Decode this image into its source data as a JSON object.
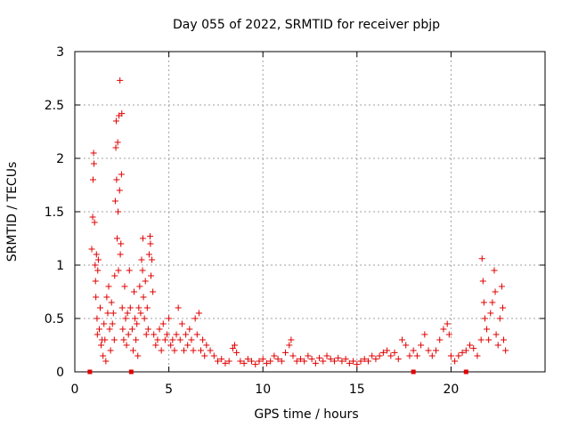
{
  "chart_data": {
    "type": "scatter",
    "title": "Day 055 of 2022, SRMTID for receiver pbjp",
    "xlabel": "GPS time / hours",
    "ylabel": "SRMTID / TECUs",
    "xlim": [
      0,
      25
    ],
    "ylim": [
      0,
      3
    ],
    "xticks": [
      0,
      5,
      10,
      15,
      20
    ],
    "yticks": [
      0,
      0.5,
      1,
      1.5,
      2,
      2.5,
      3
    ],
    "xtick_labels": [
      "0",
      "5",
      "10",
      "15",
      "20"
    ],
    "ytick_labels": [
      "0",
      "0.5",
      "1",
      "1.5",
      "2",
      "2.5",
      "3"
    ],
    "grid": true,
    "marker": "plus",
    "series_color": "#e00000",
    "zero_markers_x": [
      0.8,
      3.0,
      18.0,
      20.8
    ],
    "series": [
      {
        "name": "SRMTID",
        "points": [
          [
            0.9,
            1.15
          ],
          [
            0.95,
            1.45
          ],
          [
            0.97,
            1.8
          ],
          [
            1.0,
            2.05
          ],
          [
            1.02,
            1.95
          ],
          [
            1.05,
            1.4
          ],
          [
            1.08,
            1.0
          ],
          [
            1.1,
            0.85
          ],
          [
            1.12,
            0.7
          ],
          [
            1.15,
            1.1
          ],
          [
            1.18,
            0.5
          ],
          [
            1.2,
            0.35
          ],
          [
            1.22,
            0.95
          ],
          [
            1.25,
            1.05
          ],
          [
            1.3,
            0.4
          ],
          [
            1.35,
            0.6
          ],
          [
            1.4,
            0.25
          ],
          [
            1.45,
            0.3
          ],
          [
            1.5,
            0.15
          ],
          [
            1.55,
            0.45
          ],
          [
            1.6,
            0.3
          ],
          [
            1.65,
            0.1
          ],
          [
            1.7,
            0.7
          ],
          [
            1.75,
            0.55
          ],
          [
            1.8,
            0.8
          ],
          [
            1.85,
            0.4
          ],
          [
            1.9,
            0.2
          ],
          [
            1.95,
            0.65
          ],
          [
            2.0,
            0.45
          ],
          [
            2.05,
            0.55
          ],
          [
            2.1,
            0.3
          ],
          [
            2.12,
            0.9
          ],
          [
            2.15,
            1.6
          ],
          [
            2.18,
            2.1
          ],
          [
            2.2,
            2.35
          ],
          [
            2.22,
            1.8
          ],
          [
            2.25,
            1.25
          ],
          [
            2.28,
            2.15
          ],
          [
            2.3,
            1.5
          ],
          [
            2.32,
            0.95
          ],
          [
            2.35,
            2.4
          ],
          [
            2.38,
            1.7
          ],
          [
            2.4,
            2.73
          ],
          [
            2.42,
            1.1
          ],
          [
            2.45,
            1.2
          ],
          [
            2.48,
            1.85
          ],
          [
            2.5,
            2.42
          ],
          [
            2.52,
            0.6
          ],
          [
            2.55,
            0.4
          ],
          [
            2.6,
            0.3
          ],
          [
            2.65,
            0.8
          ],
          [
            2.7,
            0.5
          ],
          [
            2.75,
            0.25
          ],
          [
            2.8,
            0.55
          ],
          [
            2.85,
            0.35
          ],
          [
            2.9,
            0.95
          ],
          [
            2.95,
            0.6
          ],
          [
            3.05,
            0.4
          ],
          [
            3.1,
            0.2
          ],
          [
            3.15,
            0.75
          ],
          [
            3.2,
            0.5
          ],
          [
            3.25,
            0.3
          ],
          [
            3.3,
            0.45
          ],
          [
            3.35,
            0.15
          ],
          [
            3.4,
            0.6
          ],
          [
            3.45,
            0.8
          ],
          [
            3.5,
            0.55
          ],
          [
            3.55,
            1.05
          ],
          [
            3.6,
            0.95
          ],
          [
            3.62,
            1.25
          ],
          [
            3.65,
            0.7
          ],
          [
            3.7,
            0.5
          ],
          [
            3.75,
            0.85
          ],
          [
            3.8,
            0.35
          ],
          [
            3.85,
            0.6
          ],
          [
            3.9,
            0.4
          ],
          [
            3.95,
            1.1
          ],
          [
            4.0,
            1.27
          ],
          [
            4.02,
            1.2
          ],
          [
            4.05,
            0.9
          ],
          [
            4.1,
            1.05
          ],
          [
            4.15,
            0.75
          ],
          [
            4.2,
            0.35
          ],
          [
            4.3,
            0.25
          ],
          [
            4.4,
            0.3
          ],
          [
            4.5,
            0.4
          ],
          [
            4.6,
            0.2
          ],
          [
            4.7,
            0.45
          ],
          [
            4.8,
            0.3
          ],
          [
            4.9,
            0.35
          ],
          [
            5.0,
            0.5
          ],
          [
            5.1,
            0.25
          ],
          [
            5.2,
            0.3
          ],
          [
            5.3,
            0.2
          ],
          [
            5.4,
            0.35
          ],
          [
            5.5,
            0.6
          ],
          [
            5.6,
            0.3
          ],
          [
            5.7,
            0.45
          ],
          [
            5.8,
            0.2
          ],
          [
            5.9,
            0.35
          ],
          [
            6.0,
            0.25
          ],
          [
            6.1,
            0.4
          ],
          [
            6.2,
            0.3
          ],
          [
            6.3,
            0.2
          ],
          [
            6.4,
            0.5
          ],
          [
            6.5,
            0.35
          ],
          [
            6.6,
            0.55
          ],
          [
            6.7,
            0.2
          ],
          [
            6.8,
            0.3
          ],
          [
            6.9,
            0.15
          ],
          [
            7.0,
            0.25
          ],
          [
            7.2,
            0.2
          ],
          [
            7.4,
            0.15
          ],
          [
            7.6,
            0.1
          ],
          [
            7.8,
            0.12
          ],
          [
            8.0,
            0.08
          ],
          [
            8.2,
            0.1
          ],
          [
            8.4,
            0.22
          ],
          [
            8.5,
            0.25
          ],
          [
            8.6,
            0.18
          ],
          [
            8.8,
            0.1
          ],
          [
            9.0,
            0.08
          ],
          [
            9.2,
            0.12
          ],
          [
            9.4,
            0.1
          ],
          [
            9.6,
            0.07
          ],
          [
            9.8,
            0.1
          ],
          [
            10.0,
            0.12
          ],
          [
            10.2,
            0.08
          ],
          [
            10.4,
            0.1
          ],
          [
            10.6,
            0.15
          ],
          [
            10.8,
            0.12
          ],
          [
            11.0,
            0.1
          ],
          [
            11.2,
            0.18
          ],
          [
            11.4,
            0.25
          ],
          [
            11.5,
            0.3
          ],
          [
            11.6,
            0.15
          ],
          [
            11.8,
            0.1
          ],
          [
            12.0,
            0.12
          ],
          [
            12.2,
            0.1
          ],
          [
            12.4,
            0.15
          ],
          [
            12.6,
            0.12
          ],
          [
            12.8,
            0.08
          ],
          [
            13.0,
            0.13
          ],
          [
            13.2,
            0.1
          ],
          [
            13.4,
            0.15
          ],
          [
            13.6,
            0.12
          ],
          [
            13.8,
            0.1
          ],
          [
            14.0,
            0.13
          ],
          [
            14.2,
            0.1
          ],
          [
            14.4,
            0.12
          ],
          [
            14.6,
            0.08
          ],
          [
            14.8,
            0.1
          ],
          [
            15.0,
            0.07
          ],
          [
            15.2,
            0.1
          ],
          [
            15.4,
            0.12
          ],
          [
            15.6,
            0.1
          ],
          [
            15.8,
            0.15
          ],
          [
            16.0,
            0.12
          ],
          [
            16.2,
            0.15
          ],
          [
            16.4,
            0.18
          ],
          [
            16.6,
            0.2
          ],
          [
            16.8,
            0.15
          ],
          [
            17.0,
            0.18
          ],
          [
            17.2,
            0.12
          ],
          [
            17.4,
            0.3
          ],
          [
            17.6,
            0.25
          ],
          [
            17.8,
            0.15
          ],
          [
            18.0,
            0.2
          ],
          [
            18.2,
            0.15
          ],
          [
            18.4,
            0.25
          ],
          [
            18.6,
            0.35
          ],
          [
            18.8,
            0.2
          ],
          [
            19.0,
            0.15
          ],
          [
            19.2,
            0.2
          ],
          [
            19.4,
            0.3
          ],
          [
            19.6,
            0.4
          ],
          [
            19.8,
            0.45
          ],
          [
            19.9,
            0.35
          ],
          [
            20.0,
            0.15
          ],
          [
            20.2,
            0.1
          ],
          [
            20.4,
            0.15
          ],
          [
            20.6,
            0.18
          ],
          [
            20.8,
            0.2
          ],
          [
            21.0,
            0.25
          ],
          [
            21.2,
            0.22
          ],
          [
            21.4,
            0.15
          ],
          [
            21.6,
            0.3
          ],
          [
            21.65,
            1.06
          ],
          [
            21.7,
            0.85
          ],
          [
            21.75,
            0.65
          ],
          [
            21.8,
            0.5
          ],
          [
            21.9,
            0.4
          ],
          [
            22.0,
            0.3
          ],
          [
            22.1,
            0.55
          ],
          [
            22.2,
            0.65
          ],
          [
            22.3,
            0.95
          ],
          [
            22.35,
            0.75
          ],
          [
            22.4,
            0.35
          ],
          [
            22.5,
            0.25
          ],
          [
            22.6,
            0.5
          ],
          [
            22.7,
            0.8
          ],
          [
            22.75,
            0.6
          ],
          [
            22.8,
            0.3
          ],
          [
            22.9,
            0.2
          ]
        ]
      }
    ]
  }
}
